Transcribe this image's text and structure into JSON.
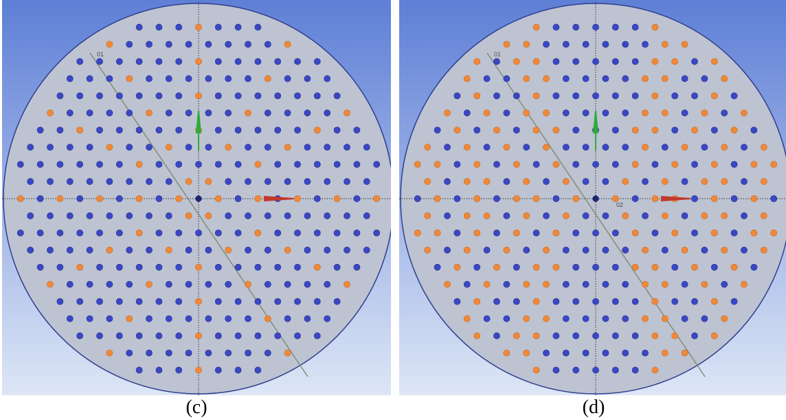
{
  "panels": [
    {
      "id": "c",
      "caption": "(c)",
      "plane_labels": [
        "01",
        ""
      ],
      "orange_holes": 56,
      "blue_holes": 241
    },
    {
      "id": "d",
      "caption": "(d)",
      "plane_labels": [
        "01",
        "02"
      ],
      "orange_holes": 149,
      "blue_holes": 148
    }
  ],
  "colors": {
    "background_top": "#5e7fd6",
    "background_bottom": "#dde6f6",
    "disk_fill": "#bdc3d1",
    "disk_edge": "#2f3f8f",
    "hole_blue": "#3b47c4",
    "hole_orange": "#f0883a",
    "section_line": "#7d8a6e",
    "axis_line": "#333333",
    "y_arrow": "#2eaa3a",
    "x_arrow": "#c0392b"
  },
  "icons": {
    "y_axis": "green-y-arrow-icon",
    "x_axis": "red-x-arrow-icon"
  }
}
